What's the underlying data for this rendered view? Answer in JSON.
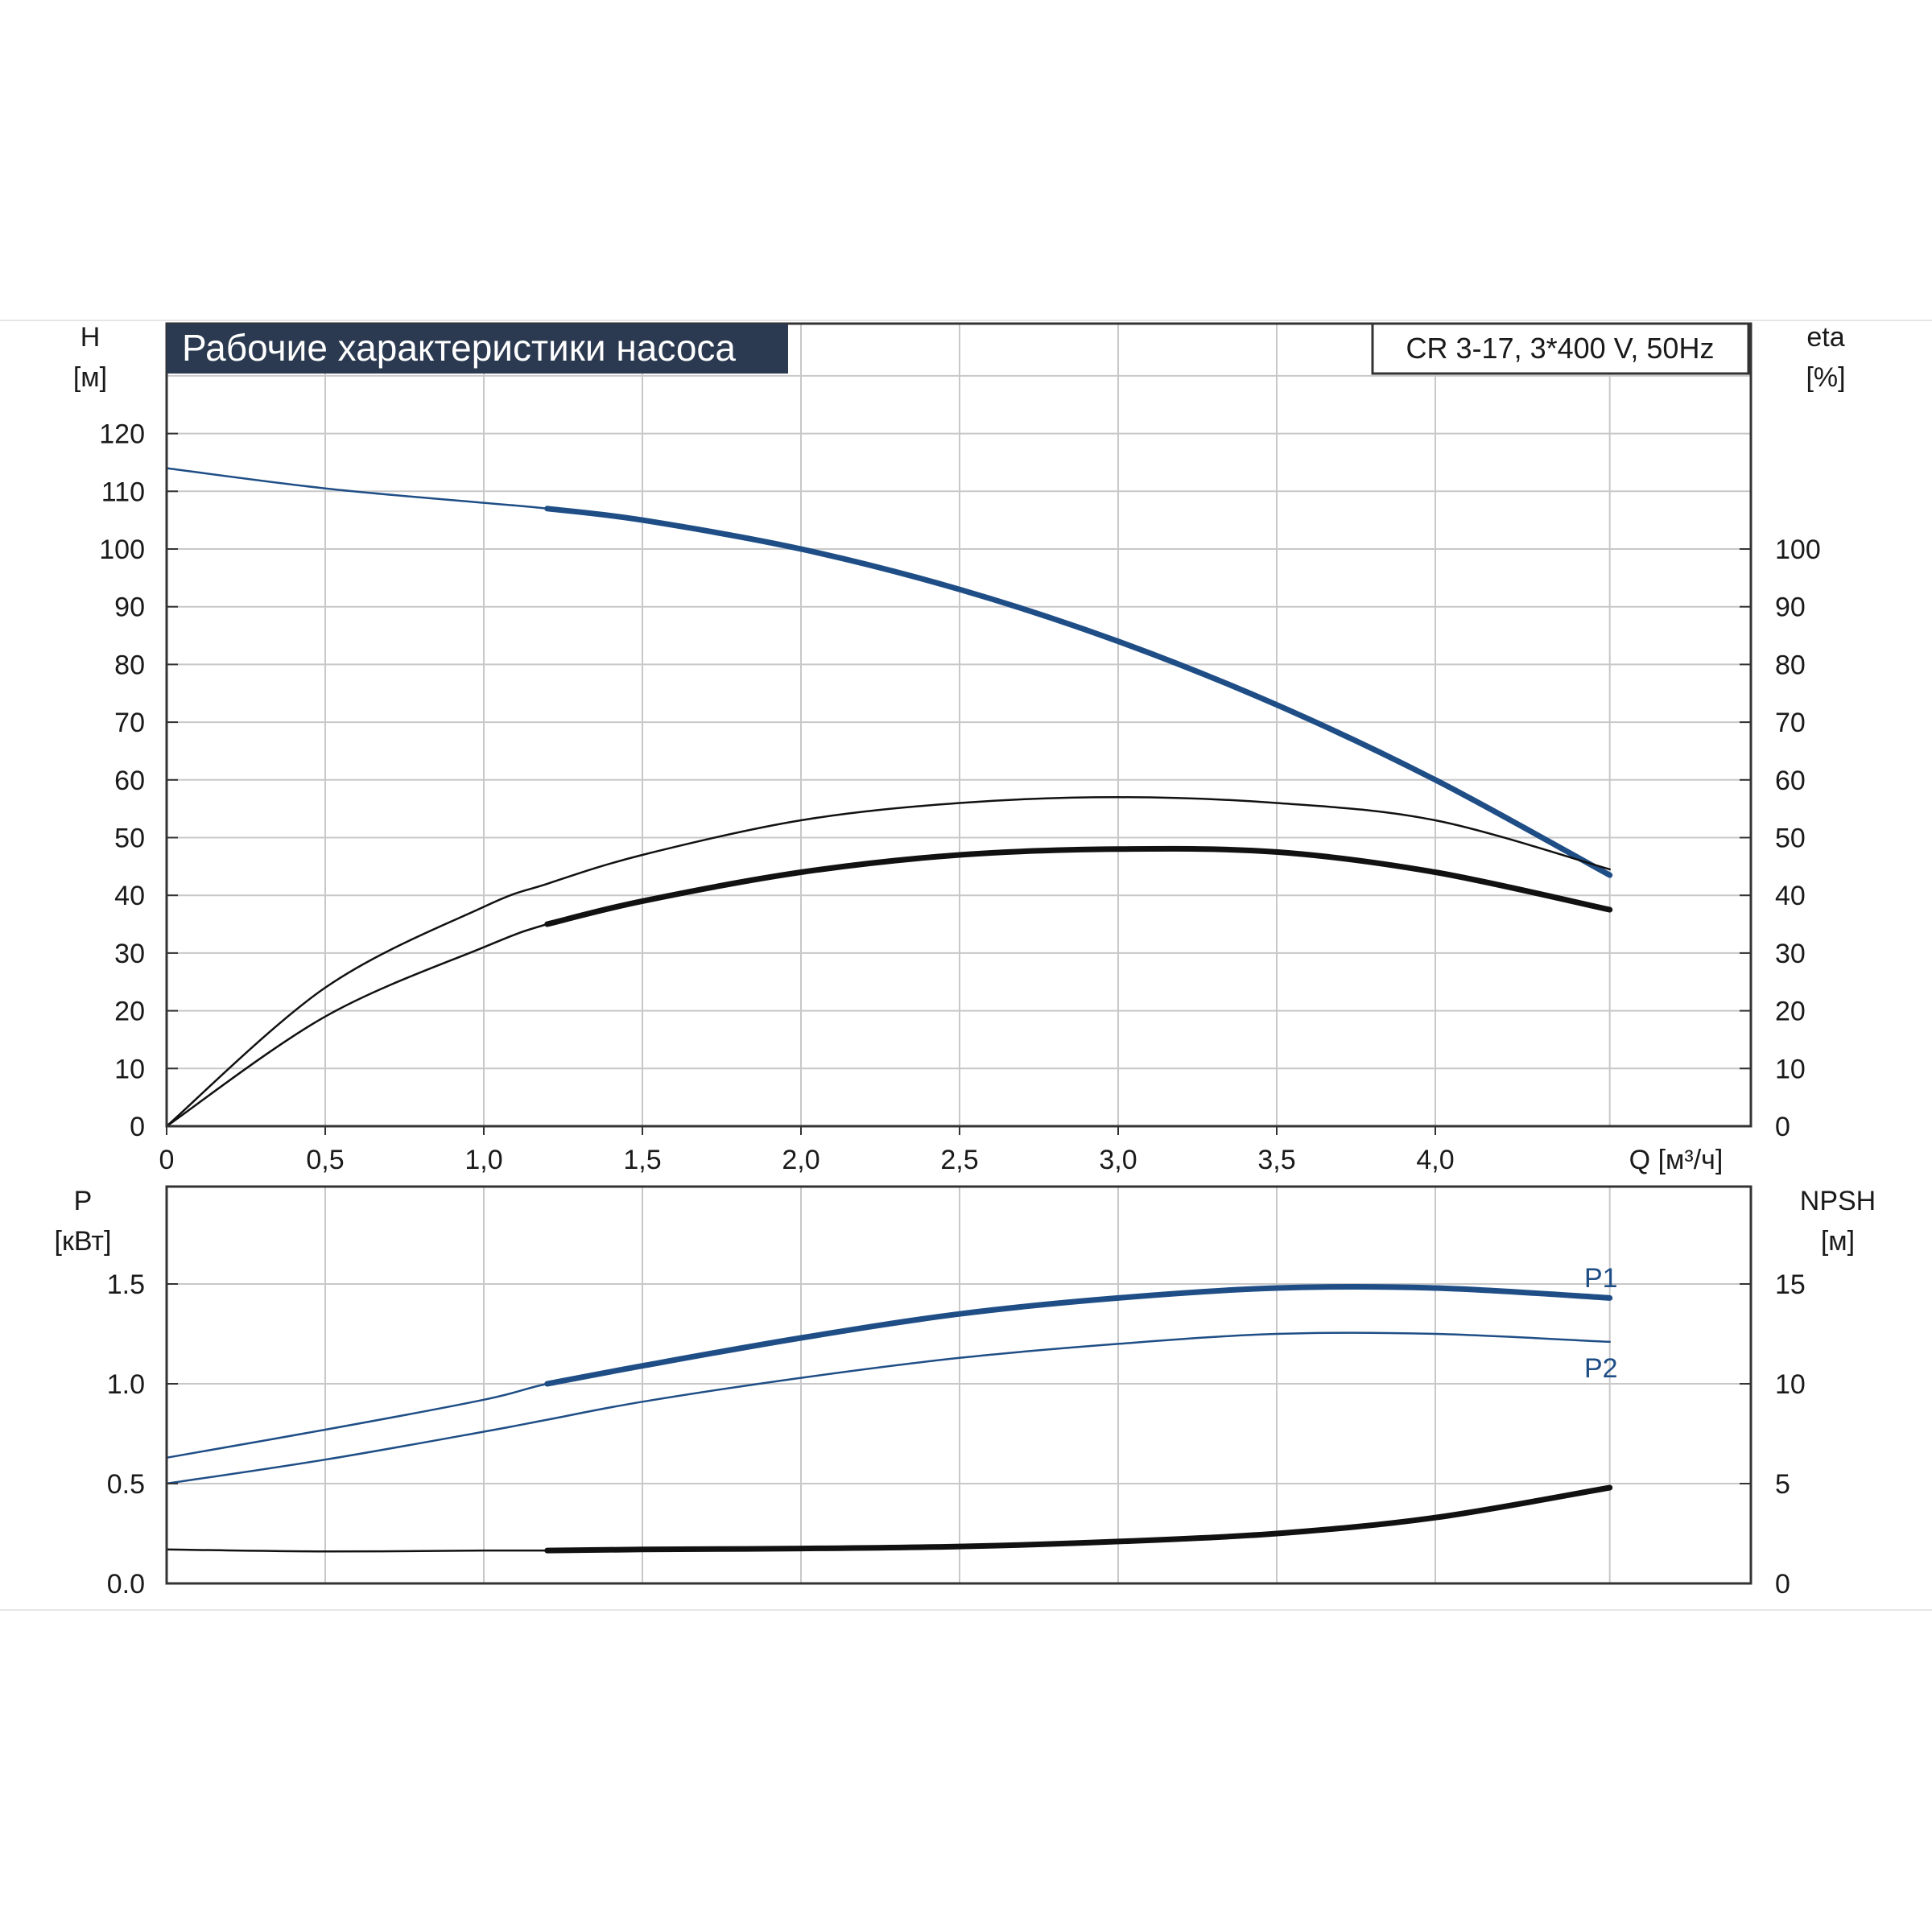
{
  "title": "Рабочие характеристики насоса",
  "model": "CR 3-17, 3*400 V, 50Hz",
  "colors": {
    "blue": "#1f4e86",
    "black": "#111111",
    "title_bg": "#2b3a50",
    "grid": "#c8c8c8"
  },
  "chart_data": [
    {
      "type": "line",
      "name": "H-Q / eta",
      "xlabel": "Q [м³/ч]",
      "ylabel_line1": "H",
      "ylabel_line2": "[м]",
      "y2label_line1": "eta",
      "y2label_line2": "[%]",
      "xlim": [
        0,
        4.5
      ],
      "ylim": [
        0,
        130
      ],
      "y2lim": [
        0,
        130
      ],
      "x_ticks": [
        "0",
        "0,5",
        "1,0",
        "1,5",
        "2,0",
        "2,5",
        "3,0",
        "3,5",
        "4,0"
      ],
      "y_ticks": [
        "0",
        "10",
        "20",
        "30",
        "40",
        "50",
        "60",
        "70",
        "80",
        "90",
        "100",
        "110",
        "120"
      ],
      "y2_ticks": [
        "0",
        "10",
        "20",
        "30",
        "40",
        "50",
        "60",
        "70",
        "80",
        "90",
        "100"
      ],
      "grid": true,
      "series": [
        {
          "key": "H",
          "color": "#1f4e86",
          "operating_range": [
            1.2,
            4.55
          ],
          "x": [
            0,
            0.5,
            1.0,
            1.2,
            1.5,
            2.0,
            2.5,
            3.0,
            3.5,
            4.0,
            4.55
          ],
          "y": [
            114,
            110.5,
            108,
            107,
            105,
            100,
            93,
            84,
            73,
            60,
            43.5
          ]
        },
        {
          "key": "eta_total",
          "color": "#111111",
          "operating_range": [
            1.2,
            4.55
          ],
          "x": [
            0,
            0.5,
            1.0,
            1.2,
            1.5,
            2.0,
            2.5,
            3.0,
            3.5,
            4.0,
            4.55
          ],
          "y": [
            0,
            19,
            31,
            35,
            39,
            44,
            47,
            48,
            47.5,
            44,
            37.5
          ]
        },
        {
          "key": "eta_pump",
          "color": "#111111",
          "operating_range": [
            0,
            0
          ],
          "x": [
            0,
            0.5,
            1.0,
            1.2,
            1.5,
            2.0,
            2.5,
            3.0,
            3.5,
            4.0,
            4.55
          ],
          "y": [
            0,
            24,
            38,
            42,
            47,
            53,
            56,
            57,
            56,
            53,
            44.5
          ]
        }
      ]
    },
    {
      "type": "line",
      "name": "P / NPSH",
      "ylabel_line1": "P",
      "ylabel_line2": "[кВт]",
      "y2label_line1": "NPSH",
      "y2label_line2": "[м]",
      "xlim": [
        0,
        4.5
      ],
      "ylim": [
        0,
        2.0
      ],
      "y2lim": [
        0,
        20
      ],
      "y_ticks": [
        "0.0",
        "0.5",
        "1.0",
        "1.5"
      ],
      "y2_ticks": [
        "0",
        "5",
        "10",
        "15"
      ],
      "grid": true,
      "series": [
        {
          "key": "P1",
          "name": "P1",
          "color": "#1f4e86",
          "axis": "left",
          "operating_range": [
            1.2,
            4.55
          ],
          "x": [
            0,
            0.5,
            1.0,
            1.2,
            1.5,
            2.0,
            2.5,
            3.0,
            3.5,
            4.0,
            4.55
          ],
          "y": [
            0.63,
            0.77,
            0.92,
            1.0,
            1.09,
            1.23,
            1.35,
            1.43,
            1.48,
            1.48,
            1.43
          ]
        },
        {
          "key": "P2",
          "name": "P2",
          "color": "#1f4e86",
          "axis": "left",
          "operating_range": [
            0,
            0
          ],
          "x": [
            0,
            0.5,
            1.0,
            1.2,
            1.5,
            2.0,
            2.5,
            3.0,
            3.5,
            4.0,
            4.55
          ],
          "y": [
            0.5,
            0.62,
            0.76,
            0.82,
            0.91,
            1.03,
            1.13,
            1.2,
            1.25,
            1.25,
            1.21
          ]
        },
        {
          "key": "NPSH",
          "color": "#111111",
          "axis": "right",
          "operating_range": [
            1.2,
            4.55
          ],
          "x": [
            0,
            0.5,
            1.0,
            1.2,
            1.5,
            2.0,
            2.5,
            3.0,
            3.5,
            4.0,
            4.55
          ],
          "y": [
            1.7,
            1.6,
            1.65,
            1.65,
            1.7,
            1.75,
            1.85,
            2.1,
            2.5,
            3.3,
            4.8
          ]
        }
      ]
    }
  ]
}
